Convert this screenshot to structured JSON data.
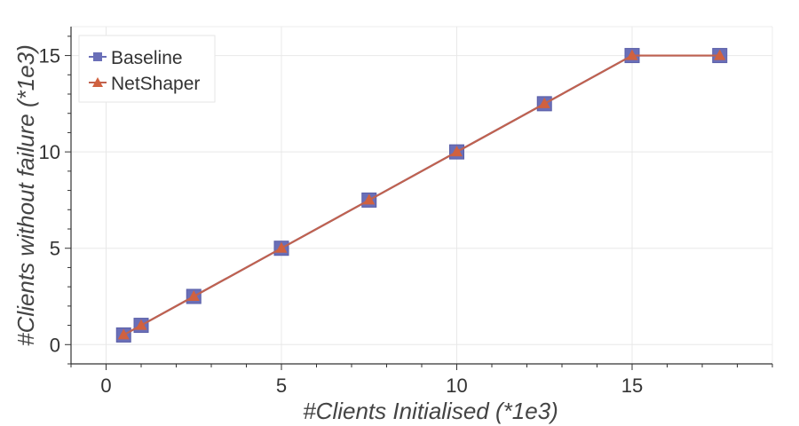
{
  "chart_data": {
    "type": "line",
    "xlabel": "#Clients Initialised (*1e3)",
    "ylabel": "#Clients without failure (*1e3)",
    "xlim": [
      -1,
      19
    ],
    "ylim": [
      -1,
      16.5
    ],
    "xticks": [
      0,
      5,
      10,
      15
    ],
    "yticks": [
      0,
      5,
      10,
      15
    ],
    "xtick_labels": [
      "0",
      "5",
      "10",
      "15"
    ],
    "ytick_labels": [
      "0",
      "5",
      "10",
      "15"
    ],
    "grid": true,
    "legend_position": "top-left",
    "series": [
      {
        "name": "Baseline",
        "color": "#6a6fb8",
        "marker": "square",
        "x": [
          0.5,
          1,
          2.5,
          5,
          7.5,
          10,
          12.5,
          15,
          17.5
        ],
        "y": [
          0.5,
          1,
          2.5,
          5,
          7.5,
          10,
          12.5,
          15,
          15
        ]
      },
      {
        "name": "NetShaper",
        "color": "#d0613f",
        "line_color": "#c0624f",
        "marker": "triangle",
        "x": [
          0.5,
          1,
          2.5,
          5,
          7.5,
          10,
          12.5,
          15,
          17.5
        ],
        "y": [
          0.5,
          1,
          2.5,
          5,
          7.5,
          10,
          12.5,
          15,
          15
        ]
      }
    ]
  }
}
